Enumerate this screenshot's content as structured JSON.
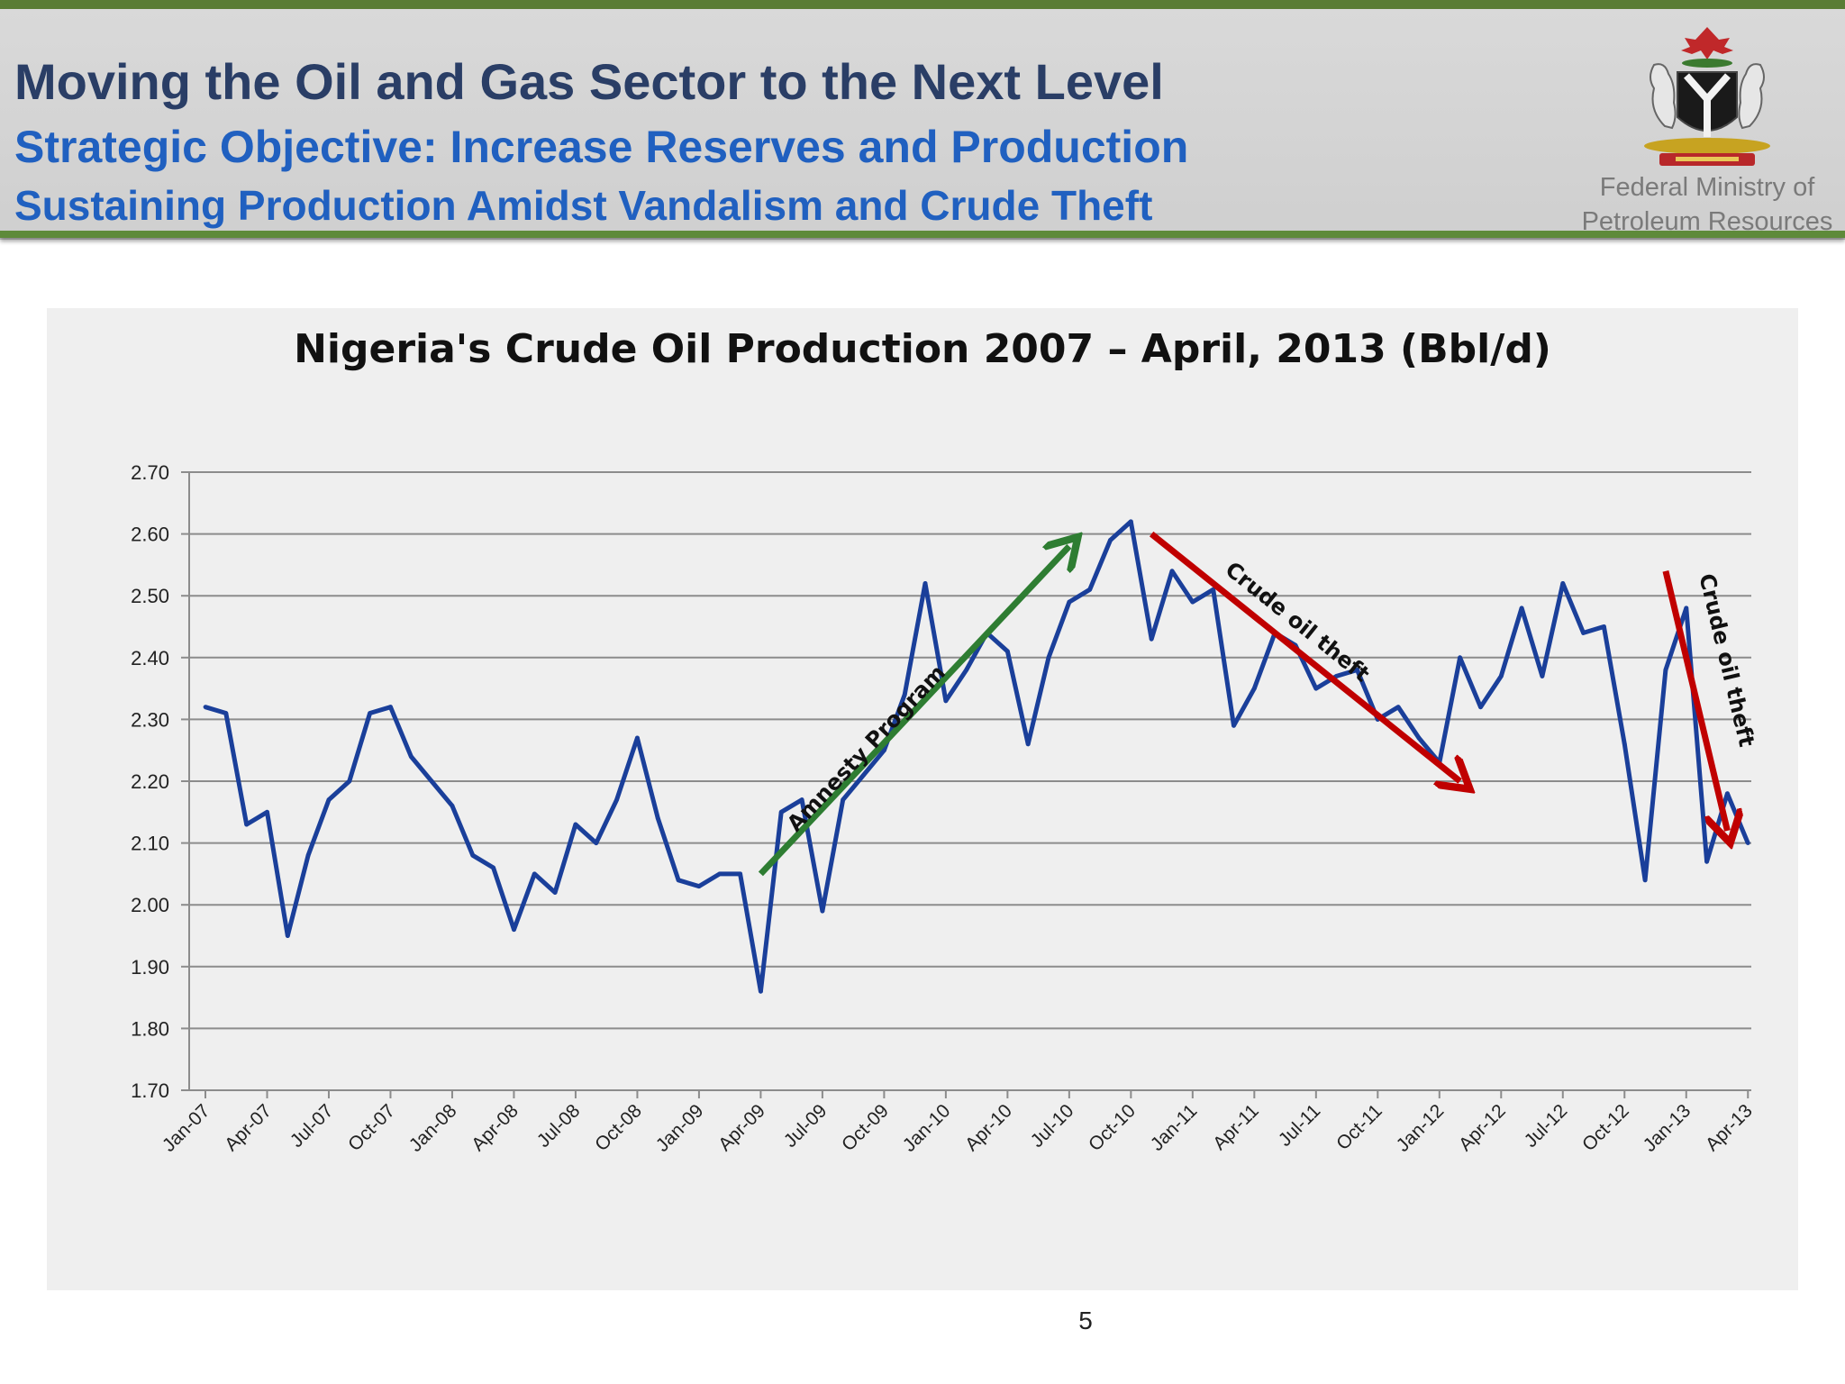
{
  "header": {
    "title": "Moving the Oil and Gas Sector to the Next Level",
    "subtitle": "Strategic Objective: Increase Reserves and Production",
    "subtitle2": "Sustaining  Production Amidst Vandalism and Crude Theft",
    "ministry_line1": "Federal Ministry of",
    "ministry_line2": "Petroleum Resources",
    "crest_icon": "nigeria-coat-of-arms-icon",
    "colors": {
      "title": "#2a3e66",
      "subtitle": "#2060c0",
      "rule": "#5e8a3a"
    }
  },
  "chart_data": {
    "type": "line",
    "title": "Nigeria's Crude Oil Production 2007 – April, 2013 (Bbl/d)",
    "xlabel": "",
    "ylabel": "",
    "ylim": [
      1.7,
      2.7
    ],
    "yticks": [
      "1.70",
      "1.80",
      "1.90",
      "2.00",
      "2.10",
      "2.20",
      "2.30",
      "2.40",
      "2.50",
      "2.60",
      "2.70"
    ],
    "x_start": "Jan-07",
    "x_tick_labels": [
      "Jan-07",
      "Apr-07",
      "Jul-07",
      "Oct-07",
      "Jan-08",
      "Apr-08",
      "Jul-08",
      "Oct-08",
      "Jan-09",
      "Apr-09",
      "Jul-09",
      "Oct-09",
      "Jan-10",
      "Apr-10",
      "Jul-10",
      "Oct-10",
      "Jan-11",
      "Apr-11",
      "Jul-11",
      "Oct-11",
      "Jan-12",
      "Apr-12",
      "Jul-12",
      "Oct-12",
      "Jan-13",
      "Apr-13"
    ],
    "grid": true,
    "series": [
      {
        "color": "#1a3f9a",
        "values": [
          2.32,
          2.31,
          2.13,
          2.15,
          1.95,
          2.08,
          2.17,
          2.2,
          2.31,
          2.32,
          2.24,
          2.2,
          2.16,
          2.08,
          2.06,
          1.96,
          2.05,
          2.02,
          2.13,
          2.1,
          2.17,
          2.27,
          2.14,
          2.04,
          2.03,
          2.05,
          2.05,
          1.86,
          2.15,
          2.17,
          1.99,
          2.17,
          2.21,
          2.25,
          2.34,
          2.52,
          2.33,
          2.38,
          2.44,
          2.41,
          2.26,
          2.4,
          2.49,
          2.51,
          2.59,
          2.62,
          2.43,
          2.54,
          2.49,
          2.51,
          2.29,
          2.35,
          2.44,
          2.42,
          2.35,
          2.37,
          2.38,
          2.3,
          2.32,
          2.27,
          2.23,
          2.4,
          2.32,
          2.37,
          2.48,
          2.37,
          2.52,
          2.44,
          2.45,
          2.26,
          2.04,
          2.38,
          2.48,
          2.07,
          2.18,
          2.1
        ]
      }
    ],
    "annotations": [
      {
        "text": "Amnesty Program",
        "color": "#2e7d32",
        "from": [
          "Apr-09",
          2.05
        ],
        "to": [
          "Jul-10",
          2.58
        ]
      },
      {
        "text": "Crude oil theft",
        "color": "#c00000",
        "from": [
          "Nov-10",
          2.6
        ],
        "to": [
          "Feb-12",
          2.2
        ]
      },
      {
        "text": "Crude oil theft",
        "color": "#c00000",
        "from": [
          "Dec-12",
          2.54
        ],
        "to": [
          "Mar-13",
          2.12
        ]
      }
    ]
  },
  "footer": {
    "page_number": "5"
  }
}
